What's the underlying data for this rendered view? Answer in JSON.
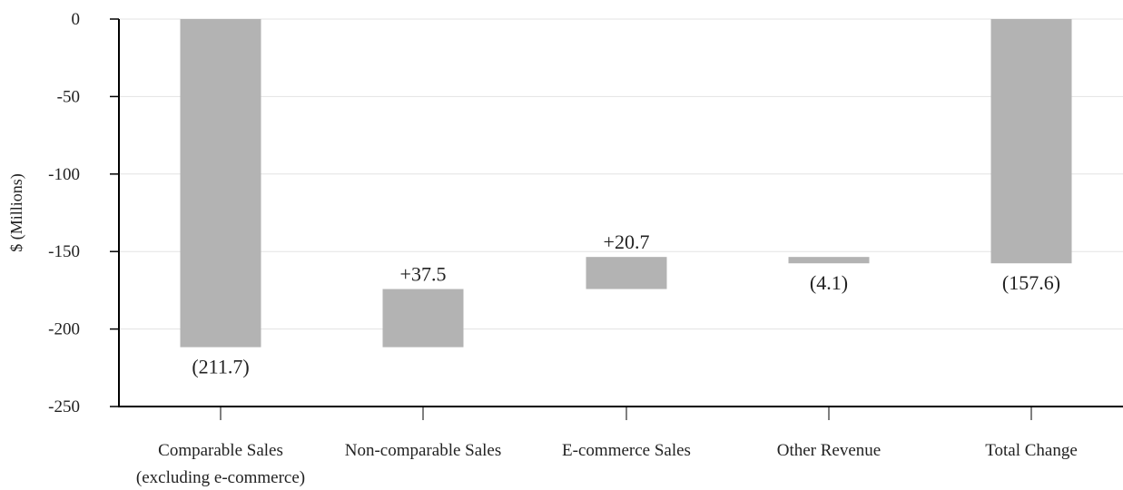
{
  "chart_data": {
    "type": "waterfall",
    "ylabel": "$ (Millions)",
    "xlabel": "",
    "ylim": [
      -250,
      0
    ],
    "yticks": [
      0,
      -50,
      -100,
      -150,
      -200,
      -250
    ],
    "grid": true,
    "legend": "none",
    "bar_color": "#b3b3b3",
    "categories": [
      [
        "Comparable Sales",
        "(excluding e-commerce)"
      ],
      [
        "Non-comparable Sales"
      ],
      [
        "E-commerce Sales"
      ],
      [
        "Other Revenue"
      ],
      [
        "Total Change"
      ]
    ],
    "values": [
      -211.7,
      37.5,
      20.7,
      -4.1,
      -157.6
    ],
    "data_labels": [
      "(211.7)",
      "+37.5",
      "+20.7",
      "(4.1)",
      "(157.6)"
    ],
    "bar_kinds": [
      "delta",
      "delta",
      "delta",
      "delta",
      "total"
    ]
  }
}
